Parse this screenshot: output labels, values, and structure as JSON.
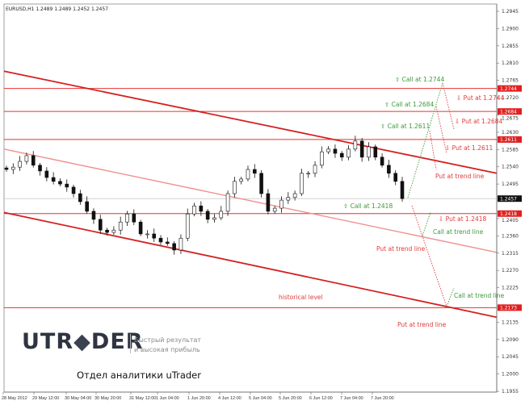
{
  "header": {
    "symbol": "EURUSD,H1",
    "ohlc": "1.2489 1.2489 1.2452 1.2457"
  },
  "colors": {
    "level": "#e83030",
    "trend": "#d42020",
    "mid_trend": "#f09090",
    "call": "#3a9a3a",
    "put": "#e03a3a",
    "candle": "#111111"
  },
  "chart_data": {
    "type": "candlestick",
    "title": "EURUSD,H1 1.2489 1.2489 1.2452 1.2457",
    "ylim": [
      1.1955,
      1.2945
    ],
    "grid": false,
    "y_ticks": [
      "1.2945",
      "1.2900",
      "1.2855",
      "1.2810",
      "1.2765",
      "1.2720",
      "1.2675",
      "1.2630",
      "1.2585",
      "1.2540",
      "1.2495",
      "1.2405",
      "1.2360",
      "1.2315",
      "1.2270",
      "1.2225",
      "1.2135",
      "1.2090",
      "1.2045",
      "1.2000",
      "1.1955"
    ],
    "x_ticks": [
      "28 May 2012",
      "29 May 12:00",
      "30 May 04:00",
      "30 May 20:00",
      "31 May 12:00",
      "1 Jun 04:00",
      "1 Jun 20:00",
      "4 Jun 12:00",
      "5 Jun 04:00",
      "5 Jun 20:00",
      "6 Jun 12:00",
      "7 Jun 04:00",
      "7 Jun 20:00"
    ],
    "closes": [
      1.2533,
      1.2539,
      1.2554,
      1.2569,
      1.2544,
      1.2529,
      1.2512,
      1.2502,
      1.2495,
      1.2487,
      1.247,
      1.2449,
      1.2424,
      1.2403,
      1.2375,
      1.2369,
      1.2375,
      1.2396,
      1.2417,
      1.2396,
      1.2365,
      1.2365,
      1.2354,
      1.2344,
      1.234,
      1.2323,
      1.2354,
      1.2417,
      1.2438,
      1.2424,
      1.2403,
      1.2407,
      1.2424,
      1.247,
      1.2502,
      1.2508,
      1.2533,
      1.2523,
      1.247,
      1.2424,
      1.2432,
      1.2453,
      1.246,
      1.247,
      1.2523,
      1.2523,
      1.2544,
      1.2579,
      1.2586,
      1.2575,
      1.2565,
      1.2586,
      1.2607,
      1.2565,
      1.2592,
      1.2565,
      1.2544,
      1.2523,
      1.2502,
      1.2457
    ],
    "current_price": "1.2457",
    "levels": [
      {
        "price": 1.2744,
        "label": "1.2744"
      },
      {
        "price": 1.2684,
        "label": "1.2684"
      },
      {
        "price": 1.2611,
        "label": "1.2611"
      },
      {
        "price": 1.2418,
        "label": "1.2418"
      },
      {
        "price": 1.2173,
        "label": "1.2173"
      }
    ],
    "trendlines": [
      {
        "name": "upper",
        "start_price": 1.2789,
        "end_price": 1.2523
      },
      {
        "name": "middle",
        "start_price": 1.2586,
        "end_price": 1.2317
      },
      {
        "name": "lower",
        "start_price": 1.2421,
        "end_price": 1.2148
      }
    ],
    "annotations": {
      "call_2744": "Call at 1.2744",
      "call_2684": "Call at 1.2684",
      "call_2611": "Call at 1.2611",
      "call_2418": "Call at 1.2418",
      "put_2744": "Put at 1.2744",
      "put_2684": "Put at 1.2684",
      "put_2611": "Put at 1.2611",
      "put_2418": "Put at 1.2418",
      "put_trend_1": "Put at trend line",
      "put_trend_2": "Put at trend line",
      "put_trend_3": "Put at trend line",
      "call_trend_1": "Call at trend line",
      "call_trend_2": "Call at trend line",
      "historical": "historical level"
    }
  },
  "branding": {
    "logo": "UTRADER",
    "tagline_1": "Быстрый результат",
    "tagline_2": "и высокая прибыль",
    "department": "Отдел аналитики uTrader"
  }
}
